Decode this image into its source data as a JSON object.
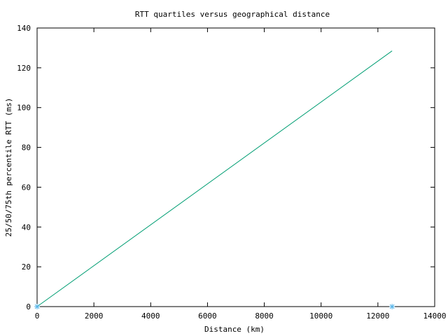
{
  "chart_data": {
    "type": "line",
    "title": "RTT quartiles versus geographical distance",
    "xlabel": "Distance (km)",
    "ylabel": "25/50/75th percentile RTT (ms)",
    "xlim": [
      0,
      14000
    ],
    "ylim": [
      0,
      140
    ],
    "xticks": [
      0,
      2000,
      4000,
      6000,
      8000,
      10000,
      12000,
      14000
    ],
    "yticks": [
      0,
      20,
      40,
      60,
      80,
      100,
      120,
      140
    ],
    "grid": false,
    "series": [
      {
        "style": "line",
        "color": "#009e73",
        "x": [
          0,
          12500
        ],
        "y": [
          0,
          128.5
        ]
      },
      {
        "style": "points",
        "marker": "asterisk",
        "color": "#56b4e9",
        "x": [
          0,
          12500
        ],
        "y": [
          0,
          0
        ]
      }
    ]
  }
}
